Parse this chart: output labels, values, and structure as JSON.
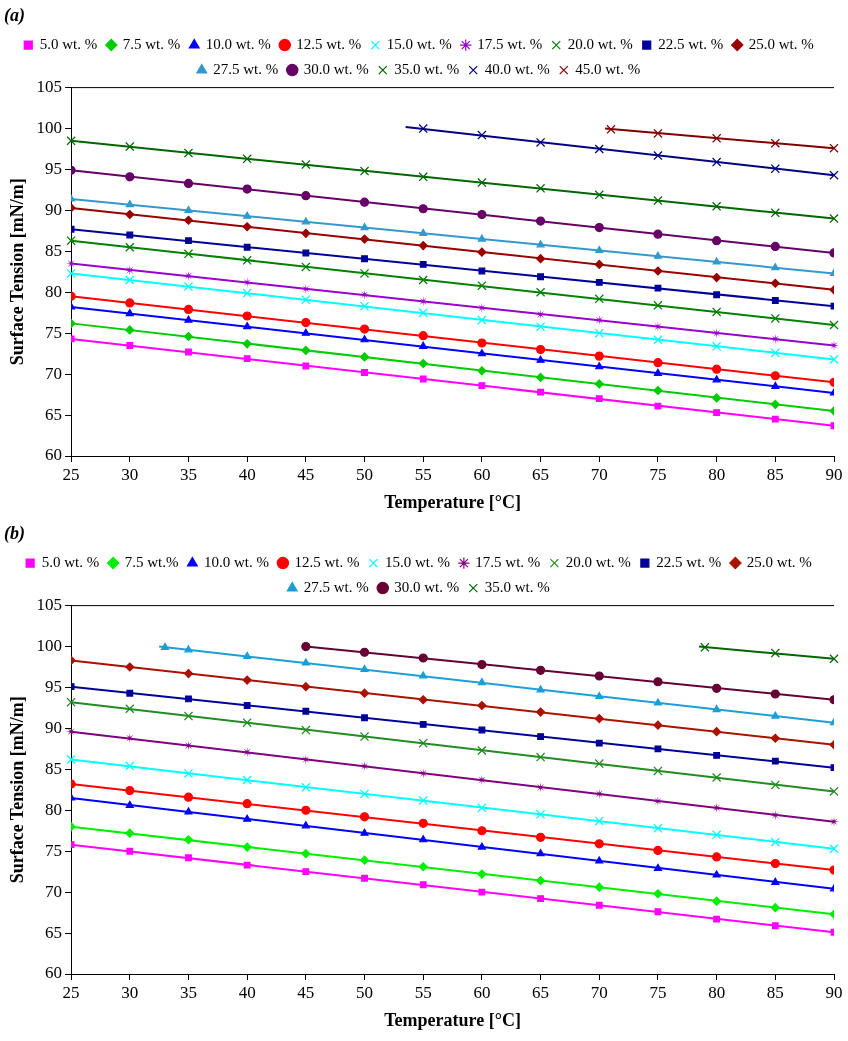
{
  "chart_data": [
    {
      "type": "scatter",
      "title": "(a)",
      "xlabel": "Temperature [°C]",
      "ylabel": "Surface Tension [mN/m]",
      "xlim": [
        25,
        90
      ],
      "ylim": [
        60,
        105
      ],
      "xticks": [
        25,
        30,
        35,
        40,
        45,
        50,
        55,
        60,
        65,
        70,
        75,
        80,
        85,
        90
      ],
      "yticks": [
        60,
        65,
        70,
        75,
        80,
        85,
        90,
        95,
        100,
        105
      ],
      "legend": "top",
      "x": [
        25,
        30,
        35,
        40,
        45,
        50,
        55,
        60,
        65,
        70,
        75,
        80,
        85,
        90
      ],
      "series": [
        {
          "name": "5.0 wt. %",
          "color": "#ff00ff",
          "marker": "square",
          "values": [
            74.3,
            73.5,
            72.7,
            71.9,
            71.0,
            70.2,
            69.4,
            68.6,
            67.8,
            67.0,
            66.1,
            65.3,
            64.5,
            63.7
          ]
        },
        {
          "name": "7.5 wt. %",
          "color": "#00cc00",
          "marker": "diamond",
          "values": [
            76.2,
            75.4,
            74.6,
            73.7,
            72.9,
            72.1,
            71.3,
            70.4,
            69.6,
            68.8,
            68.0,
            67.1,
            66.3,
            65.5
          ]
        },
        {
          "name": "10.0 wt. %",
          "color": "#0000ff",
          "marker": "triangle",
          "values": [
            78.2,
            77.4,
            76.6,
            75.8,
            75.0,
            74.2,
            73.4,
            72.5,
            71.7,
            70.9,
            70.1,
            69.3,
            68.5,
            67.7
          ]
        },
        {
          "name": "12.5 wt. %",
          "color": "#ff0000",
          "marker": "circle",
          "values": [
            79.5,
            78.7,
            77.9,
            77.1,
            76.3,
            75.5,
            74.7,
            73.8,
            73.0,
            72.2,
            71.4,
            70.6,
            69.8,
            69.0
          ]
        },
        {
          "name": "15.0 wt. %",
          "color": "#00ffff",
          "marker": "cross",
          "values": [
            82.3,
            81.5,
            80.7,
            79.9,
            79.1,
            78.3,
            77.5,
            76.6,
            75.8,
            75.0,
            74.2,
            73.4,
            72.6,
            71.8
          ]
        },
        {
          "name": "17.5 wt. %",
          "color": "#9900cc",
          "marker": "star",
          "values": [
            83.5,
            82.7,
            82.0,
            81.2,
            80.4,
            79.7,
            78.9,
            78.1,
            77.3,
            76.6,
            75.8,
            75.0,
            74.3,
            73.5
          ]
        },
        {
          "name": "20.0 wt. %",
          "color": "#008000",
          "marker": "cross",
          "values": [
            86.3,
            85.5,
            84.7,
            83.9,
            83.1,
            82.3,
            81.5,
            80.8,
            80.0,
            79.2,
            78.4,
            77.6,
            76.8,
            76.0
          ]
        },
        {
          "name": "22.5 wt. %",
          "color": "#000099",
          "marker": "square",
          "values": [
            87.7,
            87.0,
            86.3,
            85.5,
            84.8,
            84.1,
            83.4,
            82.6,
            81.9,
            81.2,
            80.5,
            79.7,
            79.0,
            78.3
          ]
        },
        {
          "name": "25.0 wt. %",
          "color": "#990000",
          "marker": "diamond",
          "values": [
            90.3,
            89.5,
            88.8,
            88.0,
            87.2,
            86.5,
            85.7,
            84.9,
            84.1,
            83.4,
            82.6,
            81.8,
            81.1,
            80.3
          ]
        },
        {
          "name": "27.5 wt. %",
          "color": "#3399cc",
          "marker": "triangle",
          "values": [
            91.4,
            90.7,
            90.0,
            89.3,
            88.6,
            87.9,
            87.2,
            86.5,
            85.8,
            85.1,
            84.4,
            83.7,
            83.0,
            82.3
          ]
        },
        {
          "name": "30.0 wt. %",
          "color": "#660066",
          "marker": "circle",
          "values": [
            94.9,
            94.1,
            93.3,
            92.6,
            91.8,
            91.0,
            90.2,
            89.5,
            88.7,
            87.9,
            87.1,
            86.3,
            85.6,
            84.8
          ]
        },
        {
          "name": "35.0 wt. %",
          "color": "#006600",
          "marker": "cross",
          "values": [
            98.5,
            97.8,
            97.0,
            96.3,
            95.6,
            94.8,
            94.1,
            93.4,
            92.7,
            91.9,
            91.2,
            90.5,
            89.7,
            89.0
          ]
        },
        {
          "name": "40.0 wt. %",
          "color": "#000080",
          "marker": "cross",
          "x": [
            55,
            60,
            65,
            70,
            75,
            80,
            85,
            90
          ],
          "values": [
            100.0,
            99.2,
            98.3,
            97.5,
            96.7,
            95.9,
            95.1,
            94.3
          ]
        },
        {
          "name": "45.0 wt. %",
          "color": "#800000",
          "marker": "cross",
          "x": [
            71,
            75,
            80,
            85,
            90
          ],
          "values": [
            99.9,
            99.4,
            98.8,
            98.2,
            97.6
          ]
        },
        {
          "type": "line",
          "color": "#ff00ff",
          "x": [
            25,
            90
          ],
          "values": [
            74.3,
            63.7
          ]
        },
        {
          "type": "line",
          "color": "#00cc00",
          "x": [
            25,
            90
          ],
          "values": [
            76.2,
            65.5
          ]
        },
        {
          "type": "line",
          "color": "#0000ff",
          "x": [
            25,
            90
          ],
          "values": [
            78.2,
            67.7
          ]
        },
        {
          "type": "line",
          "color": "#ff0000",
          "x": [
            25,
            90
          ],
          "values": [
            79.5,
            69.0
          ]
        },
        {
          "type": "line",
          "color": "#00ffff",
          "x": [
            25,
            90
          ],
          "values": [
            82.3,
            71.8
          ]
        },
        {
          "type": "line",
          "color": "#9900cc",
          "x": [
            25,
            90
          ],
          "values": [
            83.5,
            73.5
          ]
        },
        {
          "type": "line",
          "color": "#008000",
          "x": [
            25,
            90
          ],
          "values": [
            86.3,
            76.0
          ]
        },
        {
          "type": "line",
          "color": "#000099",
          "x": [
            25,
            90
          ],
          "values": [
            87.7,
            78.3
          ]
        },
        {
          "type": "line",
          "color": "#990000",
          "x": [
            25,
            90
          ],
          "values": [
            90.3,
            80.3
          ]
        },
        {
          "type": "line",
          "color": "#3399cc",
          "x": [
            25,
            90
          ],
          "values": [
            91.4,
            82.3
          ]
        },
        {
          "type": "line",
          "color": "#660066",
          "x": [
            25,
            90
          ],
          "values": [
            94.9,
            84.8
          ]
        },
        {
          "type": "line",
          "color": "#006600",
          "x": [
            25,
            90
          ],
          "values": [
            98.5,
            89.0
          ]
        },
        {
          "type": "line",
          "color": "#000080",
          "x": [
            53.5,
            90
          ],
          "values": [
            100.2,
            94.3
          ]
        },
        {
          "type": "line",
          "color": "#800000",
          "x": [
            70.5,
            90
          ],
          "values": [
            100.0,
            97.6
          ]
        }
      ]
    },
    {
      "type": "scatter",
      "title": "(b)",
      "xlabel": "Temperature [°C]",
      "ylabel": "Surface Tension [mN/m]",
      "xlim": [
        25,
        90
      ],
      "ylim": [
        60,
        105
      ],
      "xticks": [
        25,
        30,
        35,
        40,
        45,
        50,
        55,
        60,
        65,
        70,
        75,
        80,
        85,
        90
      ],
      "yticks": [
        60,
        65,
        70,
        75,
        80,
        85,
        90,
        95,
        100,
        105
      ],
      "legend": "top",
      "x": [
        25,
        30,
        35,
        40,
        45,
        50,
        55,
        60,
        65,
        70,
        75,
        80,
        85,
        90
      ],
      "series": [
        {
          "name": "5.0 wt. %",
          "color": "#ff00ff",
          "marker": "square",
          "values": [
            75.8,
            75.0,
            74.2,
            73.3,
            72.5,
            71.7,
            70.9,
            70.0,
            69.2,
            68.4,
            67.6,
            66.7,
            65.9,
            65.1
          ]
        },
        {
          "name": "7.5 wt.%",
          "color": "#00ee00",
          "marker": "diamond",
          "values": [
            78.0,
            77.2,
            76.4,
            75.5,
            74.7,
            73.9,
            73.1,
            72.2,
            71.4,
            70.6,
            69.8,
            68.9,
            68.1,
            67.3
          ]
        },
        {
          "name": "10.0 wt. %",
          "color": "#0000ff",
          "marker": "triangle",
          "values": [
            81.5,
            80.6,
            79.8,
            78.9,
            78.1,
            77.2,
            76.4,
            75.5,
            74.7,
            73.8,
            72.9,
            72.1,
            71.2,
            70.4
          ]
        },
        {
          "name": "12.5 wt. %",
          "color": "#ff0000",
          "marker": "circle",
          "values": [
            83.2,
            82.4,
            81.6,
            80.8,
            80.0,
            79.2,
            78.4,
            77.5,
            76.7,
            75.9,
            75.1,
            74.3,
            73.5,
            72.7
          ]
        },
        {
          "name": "15.0 wt. %",
          "color": "#00ffff",
          "marker": "cross",
          "values": [
            86.2,
            85.4,
            84.5,
            83.7,
            82.8,
            82.0,
            81.2,
            80.3,
            79.5,
            78.7,
            77.8,
            77.0,
            76.1,
            75.3
          ]
        },
        {
          "name": "17.5 wt. %",
          "color": "#800080",
          "marker": "star",
          "values": [
            89.6,
            88.8,
            87.9,
            87.1,
            86.2,
            85.4,
            84.5,
            83.7,
            82.8,
            82.0,
            81.1,
            80.3,
            79.4,
            78.6
          ]
        },
        {
          "name": "20.0 wt. %",
          "color": "#228b22",
          "marker": "cross",
          "values": [
            93.2,
            92.4,
            91.5,
            90.7,
            89.8,
            89.0,
            88.2,
            87.3,
            86.5,
            85.7,
            84.8,
            84.0,
            83.1,
            82.3
          ]
        },
        {
          "name": "22.5 wt. %",
          "color": "#000099",
          "marker": "square",
          "values": [
            95.1,
            94.3,
            93.6,
            92.8,
            92.1,
            91.3,
            90.5,
            89.8,
            89.0,
            88.2,
            87.5,
            86.7,
            86.0,
            85.2
          ]
        },
        {
          "name": "25.0 wt. %",
          "color": "#aa1100",
          "marker": "diamond",
          "values": [
            98.3,
            97.5,
            96.7,
            95.9,
            95.1,
            94.3,
            93.5,
            92.8,
            92.0,
            91.2,
            90.4,
            89.6,
            88.8,
            88.0
          ]
        },
        {
          "name": "27.5 wt. %",
          "color": "#1a9fd6",
          "marker": "triangle",
          "x": [
            33,
            35,
            40,
            45,
            50,
            55,
            60,
            65,
            70,
            75,
            80,
            85,
            90
          ],
          "values": [
            99.9,
            99.6,
            98.8,
            98.0,
            97.2,
            96.4,
            95.6,
            94.7,
            93.9,
            93.1,
            92.3,
            91.5,
            90.7
          ]
        },
        {
          "name": "30.0 wt. %",
          "color": "#660033",
          "marker": "circle",
          "x": [
            45,
            50,
            55,
            60,
            65,
            70,
            75,
            80,
            85,
            90
          ],
          "values": [
            100.0,
            99.3,
            98.6,
            97.8,
            97.1,
            96.4,
            95.7,
            94.9,
            94.2,
            93.5
          ]
        },
        {
          "name": "35.0 wt. %",
          "color": "#006600",
          "marker": "cross",
          "x": [
            79,
            85,
            90
          ],
          "values": [
            99.9,
            99.2,
            98.5
          ]
        },
        {
          "type": "line",
          "color": "#ff00ff",
          "x": [
            25,
            90
          ],
          "values": [
            75.8,
            65.1
          ]
        },
        {
          "type": "line",
          "color": "#00ee00",
          "x": [
            25,
            90
          ],
          "values": [
            78.0,
            67.3
          ]
        },
        {
          "type": "line",
          "color": "#0000ff",
          "x": [
            25,
            90
          ],
          "values": [
            81.5,
            70.4
          ]
        },
        {
          "type": "line",
          "color": "#ff0000",
          "x": [
            25,
            90
          ],
          "values": [
            83.2,
            72.7
          ]
        },
        {
          "type": "line",
          "color": "#00ffff",
          "x": [
            25,
            90
          ],
          "values": [
            86.2,
            75.3
          ]
        },
        {
          "type": "line",
          "color": "#800080",
          "x": [
            25,
            90
          ],
          "values": [
            89.6,
            78.6
          ]
        },
        {
          "type": "line",
          "color": "#228b22",
          "x": [
            25,
            90
          ],
          "values": [
            93.2,
            82.3
          ]
        },
        {
          "type": "line",
          "color": "#000099",
          "x": [
            25,
            90
          ],
          "values": [
            95.1,
            85.2
          ]
        },
        {
          "type": "line",
          "color": "#aa1100",
          "x": [
            25,
            90
          ],
          "values": [
            98.3,
            88.0
          ]
        },
        {
          "type": "line",
          "color": "#1a9fd6",
          "x": [
            32.5,
            90
          ],
          "values": [
            100.0,
            90.7
          ]
        },
        {
          "type": "line",
          "color": "#660033",
          "x": [
            45,
            90
          ],
          "values": [
            100.0,
            93.5
          ]
        },
        {
          "type": "line",
          "color": "#006600",
          "x": [
            78.5,
            90
          ],
          "values": [
            100.0,
            98.5
          ]
        }
      ]
    }
  ]
}
